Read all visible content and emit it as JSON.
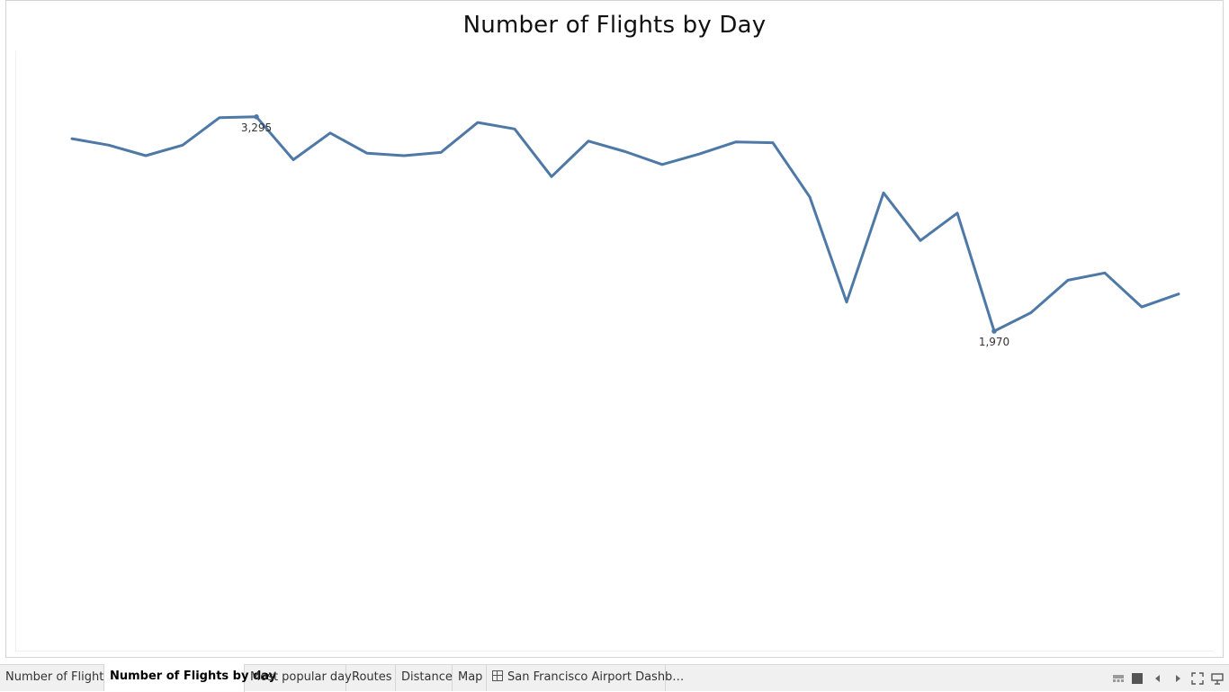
{
  "tabs": [
    {
      "label": "Number of Flights",
      "active": false
    },
    {
      "label": "Number of Flights by day",
      "active": true
    },
    {
      "label": "Most popular day",
      "active": false
    },
    {
      "label": "Routes",
      "active": false
    },
    {
      "label": "Distance",
      "active": false
    },
    {
      "label": "Map",
      "active": false
    },
    {
      "label": "San Francisco Airport Dashb…",
      "active": false,
      "icon": "dashboard-icon"
    }
  ],
  "controls": [
    {
      "name": "show-filmstrip-icon"
    },
    {
      "name": "show-sheets-icon"
    },
    {
      "name": "previous-sheet-icon"
    },
    {
      "name": "next-sheet-icon"
    },
    {
      "name": "fullscreen-icon"
    },
    {
      "name": "presentation-mode-icon"
    }
  ],
  "chart_data": {
    "type": "line",
    "title": "Number of Flights by Day",
    "xlabel": "",
    "ylabel": "",
    "line_color": "#4e79a7",
    "grid": false,
    "x": [
      1,
      2,
      3,
      4,
      5,
      6,
      7,
      8,
      9,
      10,
      11,
      12,
      13,
      14,
      15,
      16,
      17,
      18,
      19,
      20,
      21,
      22,
      23,
      24,
      25,
      26,
      27,
      28,
      29,
      30,
      31
    ],
    "values": [
      3160,
      3120,
      3055,
      3120,
      3290,
      3295,
      3030,
      3195,
      3070,
      3055,
      3075,
      3260,
      3220,
      2925,
      3145,
      3080,
      3000,
      3065,
      3140,
      3135,
      2800,
      2150,
      2825,
      2530,
      2700,
      1970,
      2085,
      2285,
      2330,
      2120,
      2200
    ],
    "ylim": [
      -10,
      3700
    ],
    "annotations": [
      {
        "x": 6,
        "value": 3295,
        "text": "3,295"
      },
      {
        "x": 26,
        "value": 1970,
        "text": "1,970"
      }
    ]
  }
}
